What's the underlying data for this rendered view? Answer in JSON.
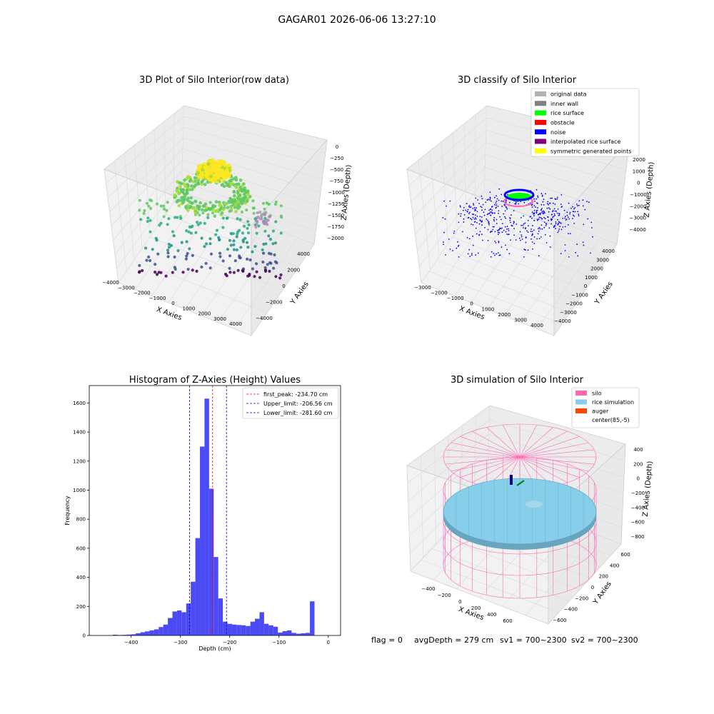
{
  "figure": {
    "suptitle": "GAGAR01 2026-06-06 13:27:10",
    "footer": {
      "flag": "flag = 0",
      "avg_depth": "avgDepth = 279 cm",
      "sv1": "sv1 = 700~2300",
      "sv2": "sv2 = 700~2300"
    }
  },
  "colors": {
    "pane": "#f2f2f2",
    "grid": "#d9d9d9",
    "hist_bar": "#4b4bf5",
    "peak_line": "#ff0000",
    "limit_line": "#0000cc",
    "original_data": "#b3b3b3",
    "inner_wall": "#808080",
    "rice_surface": "#00ff00",
    "obstacle": "#ff0000",
    "noise": "#0000ff",
    "interpolated": "#800080",
    "symmetric": "#ffff00",
    "silo": "#ff69b4",
    "rice_sim": "#87ceeb",
    "auger": "#ff4500"
  },
  "chart_data": [
    {
      "type": "scatter",
      "title": "3D Plot of Silo Interior(row data)",
      "xlabel": "X Axies",
      "ylabel": "Y Axies",
      "zlabel": "Z Axies (Depth)",
      "xticks": [
        "−4000",
        "−3000",
        "−2000",
        "−1000",
        "0",
        "1000",
        "2000",
        "3000",
        "4000"
      ],
      "yticks": [
        "−4000",
        "−2000",
        "0",
        "2000",
        "4000"
      ],
      "zticks": [
        "0",
        "−250",
        "−500",
        "−750",
        "−1000",
        "−1250",
        "−1500",
        "−1750",
        "−2000"
      ],
      "xlim": [
        -4000,
        4000
      ],
      "ylim": [
        -4000,
        4000
      ],
      "zlim": [
        -2000,
        0
      ],
      "colormap": "viridis"
    },
    {
      "type": "scatter",
      "title": "3D classify of Silo Interior",
      "xlabel": "X Axies",
      "ylabel": "Y Axies",
      "zlabel": "Z Axies (Depth)",
      "xticks": [
        "−3000",
        "−2000",
        "−1000",
        "0",
        "1000",
        "2000",
        "3000",
        "4000"
      ],
      "yticks": [
        "−4000",
        "−3000",
        "−2000",
        "−1000",
        "0",
        "1000",
        "2000",
        "3000",
        "4000"
      ],
      "zticks": [
        "2000",
        "1000",
        "0",
        "−1000",
        "−2000",
        "−3000",
        "−4000"
      ],
      "xlim": [
        -3500,
        4000
      ],
      "ylim": [
        -4000,
        4000
      ],
      "zlim": [
        -4500,
        2500
      ],
      "legend": [
        {
          "label": "original data",
          "color": "#b3b3b3"
        },
        {
          "label": "inner wall",
          "color": "#808080"
        },
        {
          "label": "rice surface",
          "color": "#00ff00"
        },
        {
          "label": "obstacle",
          "color": "#ff0000"
        },
        {
          "label": "noise",
          "color": "#0000ff"
        },
        {
          "label": "interpolated rice surface",
          "color": "#800080"
        },
        {
          "label": "symmetric generated points",
          "color": "#ffff00"
        }
      ],
      "legend_position": "upper-right"
    },
    {
      "type": "bar",
      "title": "Histogram of Z-Axies (Height) Values",
      "xlabel": "Depth (cm)",
      "ylabel": "Frequency",
      "xlim": [
        -485,
        25
      ],
      "ylim": [
        0,
        1720
      ],
      "xticks": [
        "−400",
        "−300",
        "−200",
        "−100",
        "0"
      ],
      "xtick_values": [
        -400,
        -300,
        -200,
        -100,
        0
      ],
      "yticks": [
        "0",
        "200",
        "400",
        "600",
        "800",
        "1000",
        "1200",
        "1400",
        "1600"
      ],
      "ytick_values": [
        0,
        200,
        400,
        600,
        800,
        1000,
        1200,
        1400,
        1600
      ],
      "bin_width": 9.3,
      "bin_starts": [
        -465,
        -455.7,
        -446.4,
        -437.1,
        -427.8,
        -418.5,
        -409.2,
        -399.9,
        -390.6,
        -381.3,
        -372,
        -362.7,
        -353.4,
        -344.1,
        -334.8,
        -325.5,
        -316.2,
        -306.9,
        -297.6,
        -288.3,
        -279,
        -269.7,
        -260.4,
        -251.1,
        -241.8,
        -232.5,
        -223.2,
        -213.9,
        -204.6,
        -195.3,
        -186,
        -176.7,
        -167.4,
        -158.1,
        -148.8,
        -139.5,
        -130.2,
        -120.9,
        -111.6,
        -102.3,
        -93,
        -83.7,
        -74.4,
        -65.1,
        -55.8,
        -46.5,
        -37.2,
        -27.9,
        -18.6,
        -9.3
      ],
      "values": [
        0,
        0,
        0,
        5,
        3,
        4,
        6,
        8,
        15,
        22,
        28,
        35,
        42,
        58,
        75,
        120,
        165,
        172,
        160,
        220,
        370,
        670,
        1300,
        1630,
        1010,
        540,
        255,
        95,
        80,
        75,
        72,
        70,
        65,
        95,
        115,
        160,
        80,
        70,
        60,
        20,
        30,
        35,
        18,
        12,
        15,
        18,
        235,
        0,
        0,
        0
      ],
      "lines": [
        {
          "label": "first_peak: -234.70 cm",
          "x": -234.7,
          "color": "#ff0000"
        },
        {
          "label": "Upper_limit: -206.56 cm",
          "x": -206.56,
          "color": "#0000cc"
        },
        {
          "label": "Lower_limit: -281.60 cm",
          "x": -281.6,
          "color": "#0000cc"
        }
      ],
      "legend_position": "upper-right",
      "grid": false
    },
    {
      "type": "area",
      "title": "3D simulation of Silo Interior",
      "xlabel": "X Axies",
      "ylabel": "Y Axies",
      "zlabel": "Z Axies (Depth)",
      "xticks": [
        "−400",
        "−200",
        "0",
        "200",
        "400",
        "600"
      ],
      "yticks": [
        "−600",
        "−400",
        "−200",
        "0",
        "200",
        "400",
        "600"
      ],
      "zticks": [
        "400",
        "200",
        "0",
        "−200",
        "−400",
        "−600",
        "−800"
      ],
      "legend": [
        {
          "label": "silo",
          "color": "#ff69b4"
        },
        {
          "label": "rice simulation",
          "color": "#87ceeb"
        },
        {
          "label": "auger",
          "color": "#ff4500"
        },
        {
          "label": "center(85,-5)",
          "color": ""
        }
      ],
      "legend_position": "upper-right"
    }
  ]
}
